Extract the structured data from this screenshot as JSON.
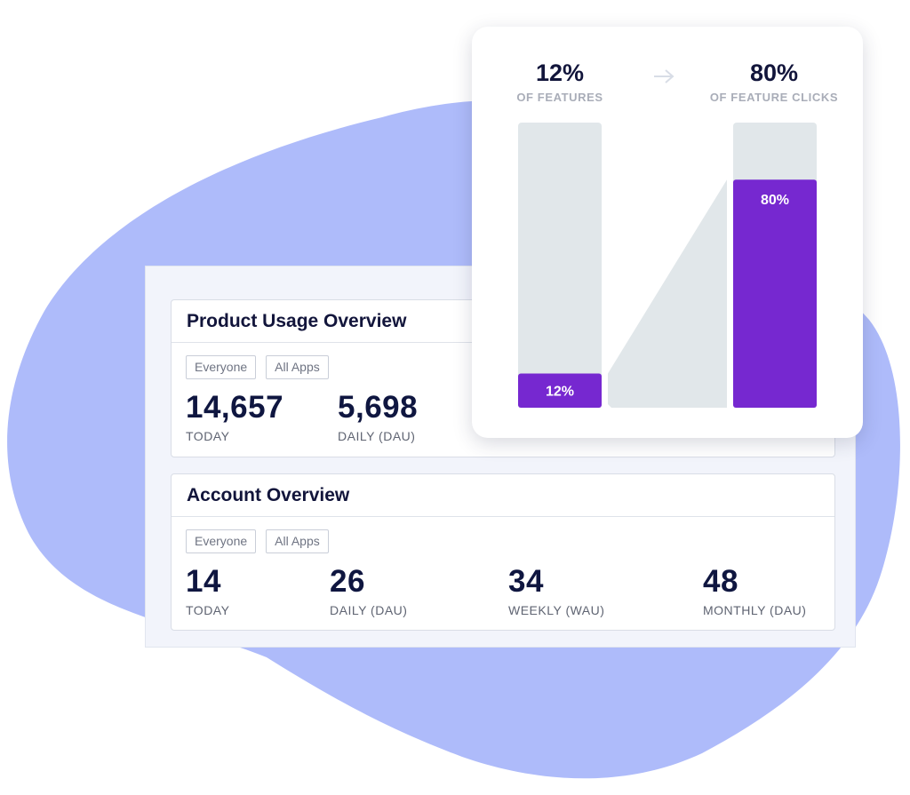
{
  "product_usage": {
    "title": "Product Usage Overview",
    "filters": [
      "Everyone",
      "All Apps"
    ],
    "stats": [
      {
        "value": "14,657",
        "label": "TODAY"
      },
      {
        "value": "5,698",
        "label": "DAILY (DAU)"
      }
    ]
  },
  "account": {
    "title": "Account Overview",
    "filters": [
      "Everyone",
      "All Apps"
    ],
    "stats": [
      {
        "value": "14",
        "label": "TODAY"
      },
      {
        "value": "26",
        "label": "DAILY (DAU)"
      },
      {
        "value": "34",
        "label": "WEEKLY (WAU)"
      },
      {
        "value": "48",
        "label": "MONTHLY (DAU)"
      }
    ]
  },
  "feature_chart": {
    "left_metric": {
      "value": "12%",
      "caption": "OF FEATURES"
    },
    "right_metric": {
      "value": "80%",
      "caption": "OF FEATURE CLICKS"
    },
    "arrow_icon": "arrow-right-icon"
  },
  "chart_data": {
    "type": "bar",
    "categories": [
      "OF FEATURES",
      "OF FEATURE CLICKS"
    ],
    "values": [
      12,
      80
    ],
    "value_labels": [
      "12%",
      "80%"
    ],
    "ylim": [
      0,
      100
    ],
    "colors": {
      "fill": "#7628d0",
      "track": "#e1e7ea",
      "connector": "#e1e7ea"
    }
  },
  "colors": {
    "blob": "#aebbfa",
    "accent": "#7628d0",
    "heading": "#12153b"
  }
}
